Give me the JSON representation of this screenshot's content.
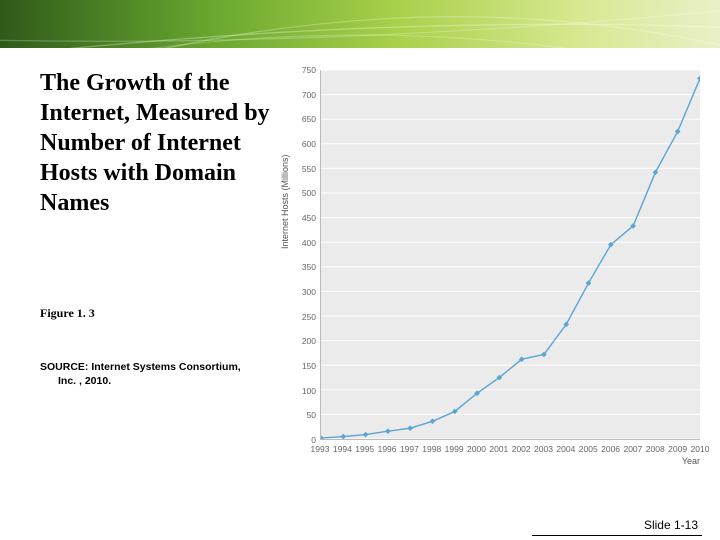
{
  "banner": {
    "gradient_stops": [
      "#2e5a1a",
      "#6aa82f",
      "#a9d04a",
      "#d6e88f",
      "#e9f0c8"
    ],
    "arc_color": "#ffffff",
    "arc_opacity": 0.28
  },
  "title": "The Growth of the Internet, Measured by Number of Internet Hosts with Domain Names",
  "figure_label": "Figure 1. 3",
  "source_line1": "SOURCE: Internet Systems Consortium,",
  "source_line2": "Inc. , 2010.",
  "slide_label": "Slide 1-13",
  "chart": {
    "type": "line",
    "y_axis_title": "Internet Hosts (Millions)",
    "x_axis_title": "Year",
    "background_color": "#ebebeb",
    "grid_color": "#ffffff",
    "line_color": "#5aa4d6",
    "marker_color": "#5aa4d6",
    "marker_shape": "diamond",
    "marker_size": 4,
    "line_width": 1.4,
    "ylim": [
      0,
      750
    ],
    "ytick_step": 50,
    "yticks": [
      0,
      50,
      100,
      150,
      200,
      250,
      300,
      350,
      400,
      450,
      500,
      550,
      600,
      650,
      700,
      750
    ],
    "xticks": [
      1993,
      1994,
      1995,
      1996,
      1997,
      1998,
      1999,
      2000,
      2001,
      2002,
      2003,
      2004,
      2005,
      2006,
      2007,
      2008,
      2009,
      2010
    ],
    "x_values": [
      1993,
      1994,
      1995,
      1996,
      1997,
      1998,
      1999,
      2000,
      2001,
      2002,
      2003,
      2004,
      2005,
      2006,
      2007,
      2008,
      2009,
      2010
    ],
    "y_values": [
      2,
      5,
      9,
      16,
      22,
      36,
      56,
      93,
      125,
      162,
      172,
      233,
      317,
      395,
      433,
      542,
      625,
      733
    ],
    "title_fontsize": 24,
    "tick_fontsize": 8.5,
    "axis_title_fontsize": 9
  }
}
